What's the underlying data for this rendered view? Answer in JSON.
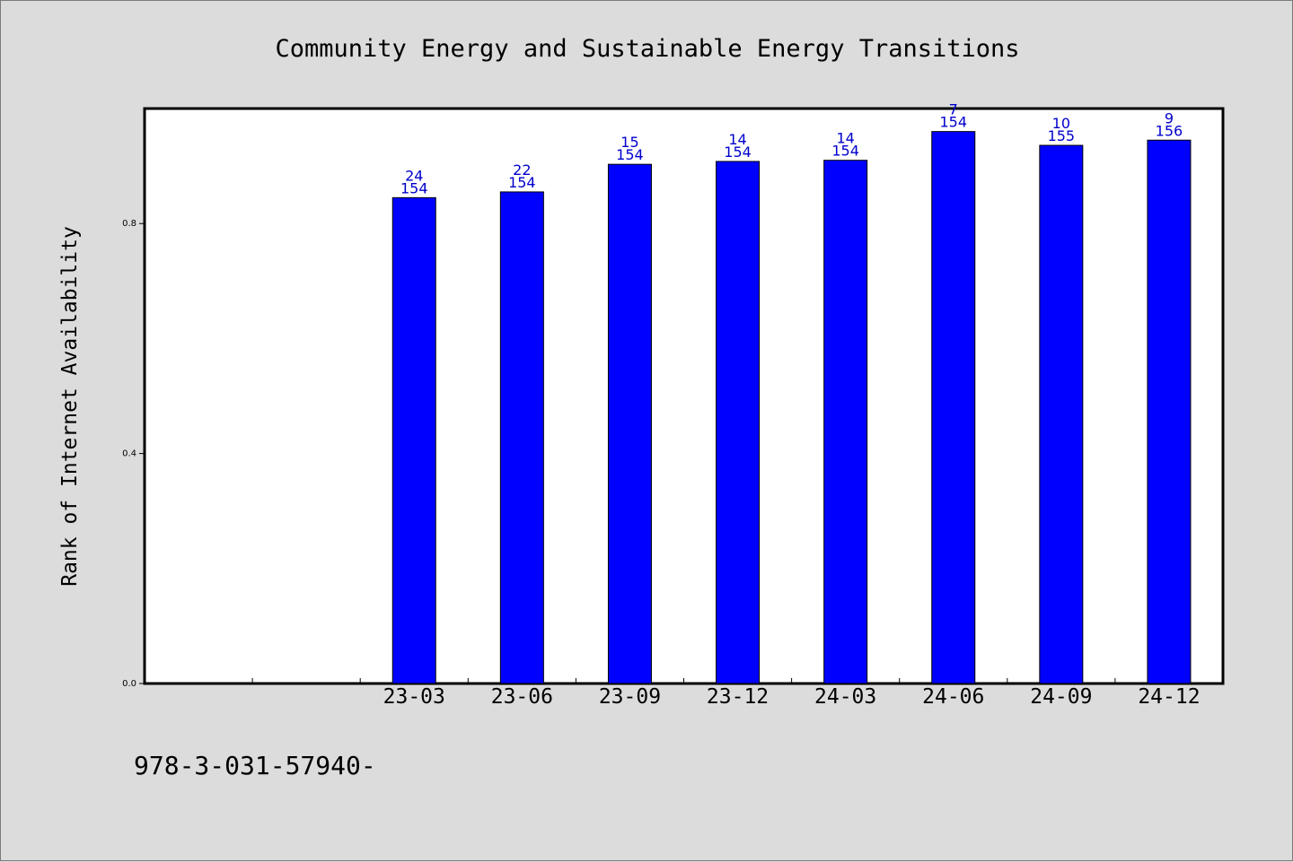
{
  "chart_data": {
    "type": "bar",
    "title": "Community Energy and Sustainable Energy Transitions",
    "ylabel": "Rank of Internet Availability",
    "xlabel": "",
    "categories": [
      "",
      "",
      "23-03",
      "23-06",
      "23-09",
      "23-12",
      "24-03",
      "24-06",
      "24-09",
      "24-12"
    ],
    "values": [
      null,
      null,
      0.845,
      0.855,
      0.903,
      0.908,
      0.91,
      0.96,
      0.936,
      0.945
    ],
    "rank_labels": [
      "",
      "",
      "24",
      "22",
      "15",
      "14",
      "14",
      "7",
      "10",
      "9"
    ],
    "total_labels": [
      "",
      "",
      "154",
      "154",
      "154",
      "154",
      "154",
      "154",
      "155",
      "156"
    ],
    "ylim": [
      0.0,
      1.0
    ],
    "yticks": [
      0.0,
      0.4,
      0.8
    ],
    "ytick_labels": [
      "0.0",
      "0.4",
      "0.8"
    ],
    "grid": false,
    "bar_color": "#0000ff",
    "label_color": "#0000cc"
  },
  "footer": {
    "text": "978-3-031-57940-"
  }
}
